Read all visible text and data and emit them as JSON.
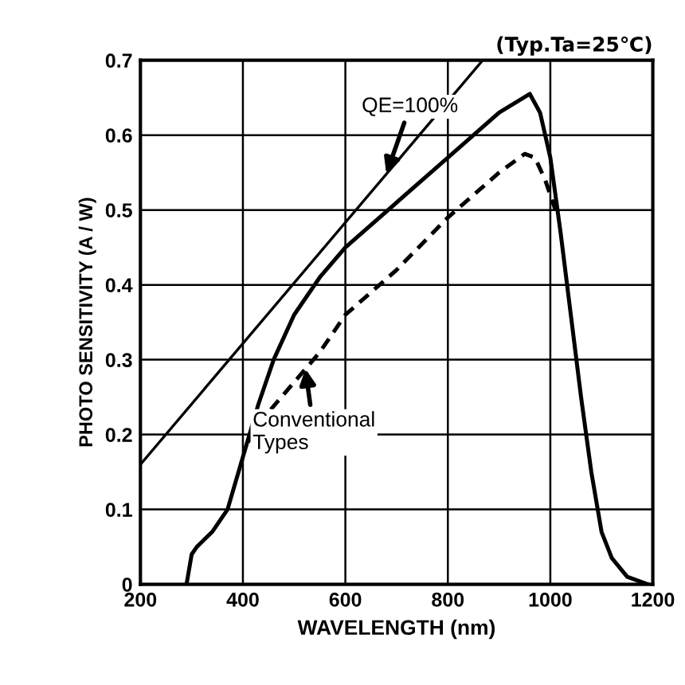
{
  "chart_data": {
    "type": "line",
    "xlabel": "WAVELENGTH (nm)",
    "ylabel": "PHOTO SENSITIVITY (A / W)",
    "subtitle": "(Typ.Ta=25℃)",
    "xlim": [
      200,
      1200
    ],
    "xticks": [
      200,
      400,
      600,
      800,
      1000,
      1200
    ],
    "ylim": [
      0,
      0.7
    ],
    "yticks": [
      0,
      0.1,
      0.2,
      0.3,
      0.4,
      0.5,
      0.6,
      0.7
    ],
    "grid": true,
    "legend": false,
    "marker": "none",
    "series": [
      {
        "color": "#000000",
        "line_style": "solid",
        "x": [
          200,
          868
        ],
        "values": [
          0.16,
          0.7
        ]
      },
      {
        "color": "#000000",
        "line_style": "solid",
        "x": [
          290,
          300,
          310,
          340,
          370,
          400,
          430,
          460,
          500,
          550,
          600,
          700,
          800,
          900,
          960,
          980,
          1000,
          1020,
          1040,
          1060,
          1080,
          1100,
          1120,
          1150,
          1190
        ],
        "values": [
          0,
          0.04,
          0.05,
          0.07,
          0.1,
          0.17,
          0.24,
          0.3,
          0.36,
          0.41,
          0.45,
          0.51,
          0.57,
          0.63,
          0.655,
          0.63,
          0.57,
          0.47,
          0.36,
          0.25,
          0.15,
          0.07,
          0.035,
          0.01,
          0
        ]
      },
      {
        "color": "#000000",
        "line_style": "dashed",
        "x": [
          410,
          450,
          500,
          550,
          600,
          700,
          800,
          900,
          950,
          970,
          990,
          1010
        ],
        "values": [
          0.19,
          0.23,
          0.27,
          0.31,
          0.36,
          0.42,
          0.49,
          0.55,
          0.575,
          0.57,
          0.54,
          0.5
        ]
      }
    ],
    "annotations": [
      {
        "text": "QE=100%",
        "x": 680,
        "y": 0.548
      },
      {
        "text": "Conventional\nTypes",
        "x": 522,
        "y": 0.288
      }
    ]
  }
}
